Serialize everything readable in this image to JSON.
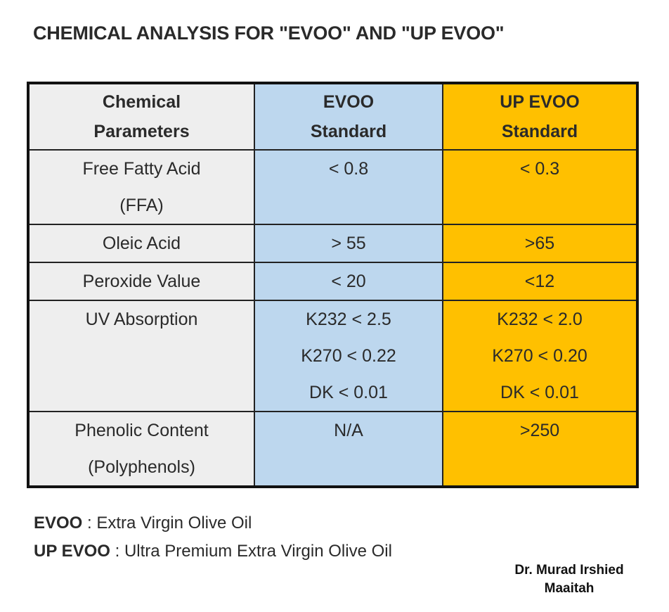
{
  "title": "CHEMICAL ANALYSIS FOR \"EVOO\" AND \"UP EVOO\"",
  "colors": {
    "parameter_column": "#eeeeee",
    "evoo_column": "#bdd7ee",
    "up_evoo_column": "#ffc000",
    "border": "#111111"
  },
  "table": {
    "headers": {
      "param": [
        "Chemical",
        "Parameters"
      ],
      "evoo": [
        "EVOO",
        "Standard"
      ],
      "up": [
        "UP EVOO",
        "Standard"
      ]
    },
    "rows": [
      {
        "param": [
          "Free Fatty Acid",
          "(FFA)"
        ],
        "evoo": [
          "< 0.8"
        ],
        "up": [
          "< 0.3"
        ]
      },
      {
        "param": [
          "Oleic Acid"
        ],
        "evoo": [
          "> 55"
        ],
        "up": [
          ">65"
        ]
      },
      {
        "param": [
          "Peroxide Value"
        ],
        "evoo": [
          "< 20"
        ],
        "up": [
          "<12"
        ]
      },
      {
        "param": [
          "UV Absorption"
        ],
        "evoo": [
          "K232 < 2.5",
          "K270 < 0.22",
          "DK < 0.01"
        ],
        "up": [
          "K232 < 2.0",
          "K270 < 0.20",
          "DK < 0.01"
        ]
      },
      {
        "param": [
          "Phenolic Content",
          "(Polyphenols)"
        ],
        "evoo": [
          "N/A"
        ],
        "up": [
          ">250"
        ]
      }
    ]
  },
  "legend": {
    "evoo_term": "EVOO",
    "evoo_def": ": Extra Virgin Olive Oil",
    "up_term": "UP EVOO",
    "up_def": ": Ultra Premium Extra Virgin Olive Oil"
  },
  "author": {
    "line1": "Dr. Murad Irshied",
    "line2": "Maaitah"
  }
}
